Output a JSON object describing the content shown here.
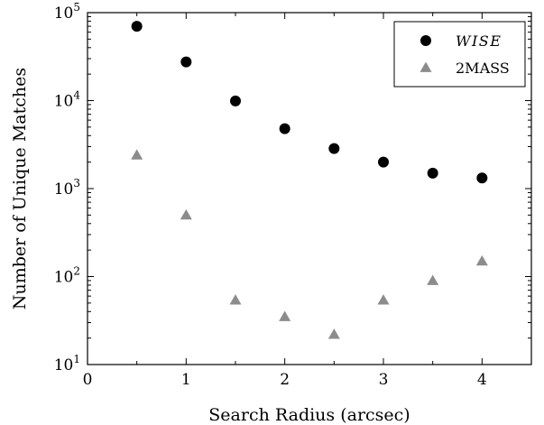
{
  "chart_data": {
    "type": "scatter",
    "xlabel": "Search Radius (arcsec)",
    "ylabel": "Number of Unique Matches",
    "xlim": [
      0,
      4.5
    ],
    "ylim": [
      10,
      100000
    ],
    "yscale": "log",
    "grid": false,
    "legend_position": "top-right",
    "x_ticks": [
      0,
      1,
      2,
      3,
      4
    ],
    "x_tick_labels": [
      "0",
      "1",
      "2",
      "3",
      "4"
    ],
    "y_ticks": [
      10,
      100,
      1000,
      10000,
      100000
    ],
    "y_tick_labels": [
      {
        "base": "10",
        "exp": "1"
      },
      {
        "base": "10",
        "exp": "2"
      },
      {
        "base": "10",
        "exp": "3"
      },
      {
        "base": "10",
        "exp": "4"
      },
      {
        "base": "10",
        "exp": "5"
      }
    ],
    "series": [
      {
        "name": "WISE",
        "marker": "circle",
        "color": "#000000",
        "italic": true,
        "x": [
          0.5,
          1.0,
          1.5,
          2.0,
          2.5,
          3.0,
          3.5,
          4.0
        ],
        "y": [
          70000,
          27500,
          9900,
          4800,
          2850,
          2000,
          1500,
          1320
        ]
      },
      {
        "name": "2MASS",
        "marker": "triangle",
        "color": "#8c8c8c",
        "italic": false,
        "x": [
          0.5,
          1.0,
          1.5,
          2.0,
          2.5,
          3.0,
          3.5,
          4.0
        ],
        "y": [
          2400,
          500,
          54,
          35,
          22,
          54,
          90,
          150
        ]
      }
    ]
  }
}
